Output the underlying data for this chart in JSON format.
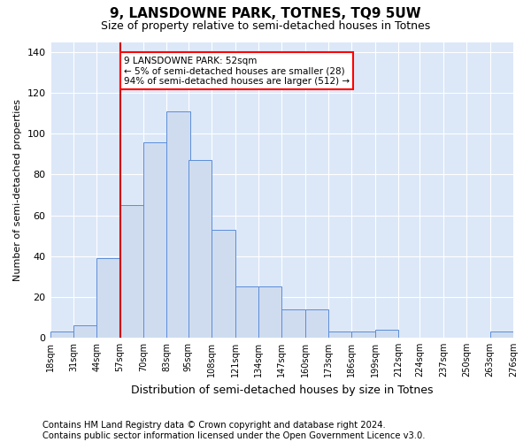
{
  "title": "9, LANSDOWNE PARK, TOTNES, TQ9 5UW",
  "subtitle": "Size of property relative to semi-detached houses in Totnes",
  "xlabel": "Distribution of semi-detached houses by size in Totnes",
  "ylabel": "Number of semi-detached properties",
  "bar_color": "#cfdcf0",
  "bar_edge_color": "#5b8dd9",
  "background_color": "#dce8f8",
  "annotation_text": "9 LANSDOWNE PARK: 52sqm\n← 5% of semi-detached houses are smaller (28)\n94% of semi-detached houses are larger (512) →",
  "vline_x": 57,
  "vline_color": "#cc0000",
  "ylim": [
    0,
    145
  ],
  "yticks": [
    0,
    20,
    40,
    60,
    80,
    100,
    120,
    140
  ],
  "bin_edges": [
    18,
    31,
    44,
    57,
    70,
    83,
    95,
    108,
    121,
    134,
    147,
    160,
    173,
    186,
    199,
    212,
    224,
    237,
    250,
    263,
    276
  ],
  "bin_labels": [
    "18sqm",
    "31sqm",
    "44sqm",
    "57sqm",
    "70sqm",
    "83sqm",
    "95sqm",
    "108sqm",
    "121sqm",
    "134sqm",
    "147sqm",
    "160sqm",
    "173sqm",
    "186sqm",
    "199sqm",
    "212sqm",
    "224sqm",
    "237sqm",
    "250sqm",
    "263sqm",
    "276sqm"
  ],
  "bar_heights": [
    3,
    6,
    39,
    65,
    96,
    111,
    87,
    53,
    25,
    25,
    14,
    14,
    3,
    3,
    4,
    0,
    0,
    0,
    0,
    3
  ],
  "footer": "Contains HM Land Registry data © Crown copyright and database right 2024.\nContains public sector information licensed under the Open Government Licence v3.0.",
  "title_fontsize": 11,
  "subtitle_fontsize": 9,
  "footer_fontsize": 7.2,
  "ylabel_fontsize": 8,
  "xlabel_fontsize": 9
}
